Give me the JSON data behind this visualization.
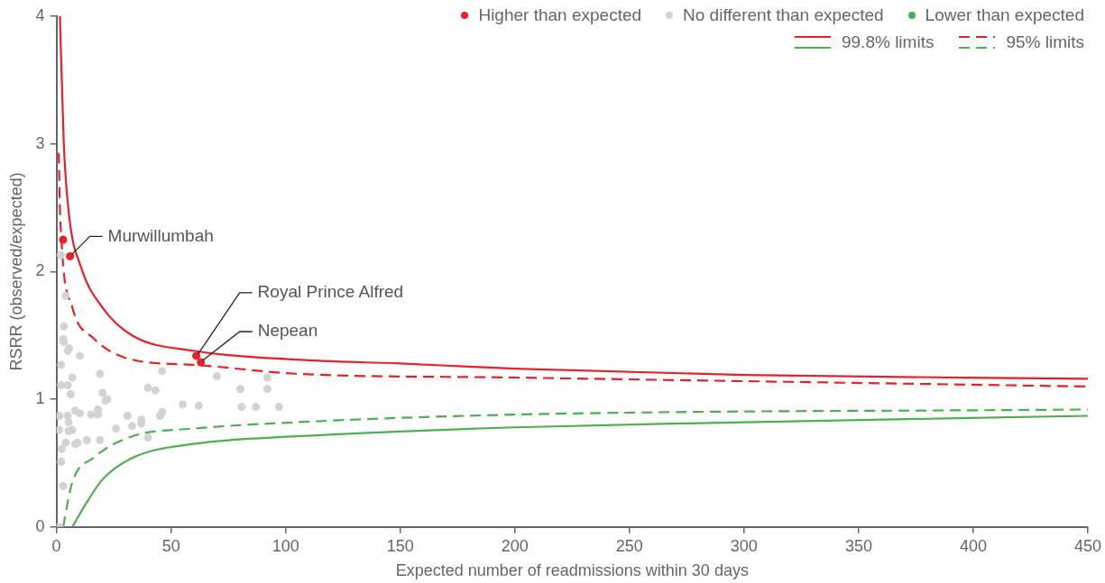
{
  "chart_data": {
    "type": "scatter",
    "xlabel": "Expected number of readmissions within 30 days",
    "ylabel": "RSRR (observed/expected)",
    "xlim": [
      0,
      450
    ],
    "xticks": [
      0,
      50,
      100,
      150,
      200,
      250,
      300,
      350,
      400,
      450
    ],
    "ylim": [
      0,
      4
    ],
    "yticks": [
      0,
      1,
      2,
      3,
      4
    ],
    "grid": false,
    "legend": "top right",
    "series": [
      {
        "name": "Higher than expected",
        "type": "scatter",
        "marker": "circle",
        "color": "#e8202a",
        "x": [
          2.9,
          5.9,
          61,
          63
        ],
        "values": [
          2.25,
          2.12,
          1.34,
          1.29
        ]
      },
      {
        "name": "No different than expected",
        "type": "scatter",
        "marker": "circle",
        "color": "#d3d3d3",
        "x": [
          1.9,
          4.0,
          3.2,
          2.9,
          3.2,
          5.5,
          4.9,
          10.2,
          2.0,
          6.9,
          19.0,
          46.1,
          2.0,
          4.9,
          6.2,
          20.1,
          21.4,
          22.1,
          39.9,
          43.2,
          70.0,
          92.0,
          80.2,
          92.0,
          55.1,
          62.1,
          80.8,
          87.0,
          97.1,
          1.2,
          4.9,
          8.2,
          10.2,
          15.1,
          18.1,
          18.1,
          31.0,
          37.0,
          37.0,
          46.1,
          45.2,
          33.0,
          26.0,
          5.3,
          1.2,
          6.9,
          5.3,
          13.2,
          19.0,
          8.2,
          9.2,
          4.0,
          2.3,
          39.9,
          2.0,
          2.9,
          1.2
        ],
        "values": [
          2.13,
          1.81,
          1.57,
          1.47,
          1.45,
          1.4,
          1.38,
          1.34,
          1.27,
          1.17,
          1.2,
          1.22,
          1.11,
          1.11,
          1.04,
          1.05,
          0.99,
          1.0,
          1.09,
          1.07,
          1.18,
          1.17,
          1.08,
          1.08,
          0.96,
          0.95,
          0.94,
          0.94,
          0.94,
          0.87,
          0.87,
          0.91,
          0.89,
          0.88,
          0.92,
          0.88,
          0.87,
          0.84,
          0.81,
          0.9,
          0.87,
          0.79,
          0.77,
          0.82,
          0.76,
          0.76,
          0.75,
          0.68,
          0.68,
          0.65,
          0.66,
          0.66,
          0.61,
          0.7,
          0.51,
          0.32,
          0.0
        ]
      },
      {
        "name": "Lower than expected",
        "type": "scatter",
        "marker": "circle",
        "color": "#4caf50"
      },
      {
        "name": "99.8% limits",
        "type": "line",
        "marker": "none",
        "line_style": "solid",
        "color": "#e8202a",
        "x": [
          1.5,
          3.2,
          5.5,
          10.8,
          20,
          33,
          59.7,
          104.6,
          150,
          200,
          300,
          450
        ],
        "values": [
          4,
          3.0,
          2.44,
          2.03,
          1.72,
          1.5,
          1.38,
          1.31,
          1.28,
          1.24,
          1.19,
          1.16
        ]
      },
      {
        "type": "line",
        "marker": "none",
        "line_style": "solid",
        "color": "#4caf50",
        "x": [
          6.9,
          13.5,
          20,
          33,
          59.7,
          104.6,
          200,
          300,
          450
        ],
        "values": [
          0,
          0.2,
          0.37,
          0.54,
          0.65,
          0.71,
          0.78,
          0.82,
          0.87
        ]
      },
      {
        "name": "95% limits",
        "type": "line",
        "marker": "none",
        "line_style": "dashed",
        "color": "#e8202a",
        "x": [
          1,
          1.6,
          6.9,
          16,
          33,
          59.7,
          104.6,
          200,
          450
        ],
        "values": [
          2.93,
          2.44,
          1.72,
          1.48,
          1.31,
          1.27,
          1.2,
          1.17,
          1.1
        ]
      },
      {
        "type": "line",
        "marker": "none",
        "line_style": "dashed",
        "color": "#4caf50",
        "x": [
          2.9,
          6.9,
          16,
          33,
          59.7,
          104.6,
          200,
          450
        ],
        "values": [
          0,
          0.35,
          0.54,
          0.71,
          0.77,
          0.82,
          0.88,
          0.92
        ]
      }
    ],
    "annotations": [
      {
        "text": "Murwillumbah",
        "x": 5.9,
        "y": 2.12
      },
      {
        "text": "Royal Prince Alfred",
        "x": 61,
        "y": 1.34
      },
      {
        "text": "Nepean",
        "x": 63,
        "y": 1.29
      }
    ]
  }
}
